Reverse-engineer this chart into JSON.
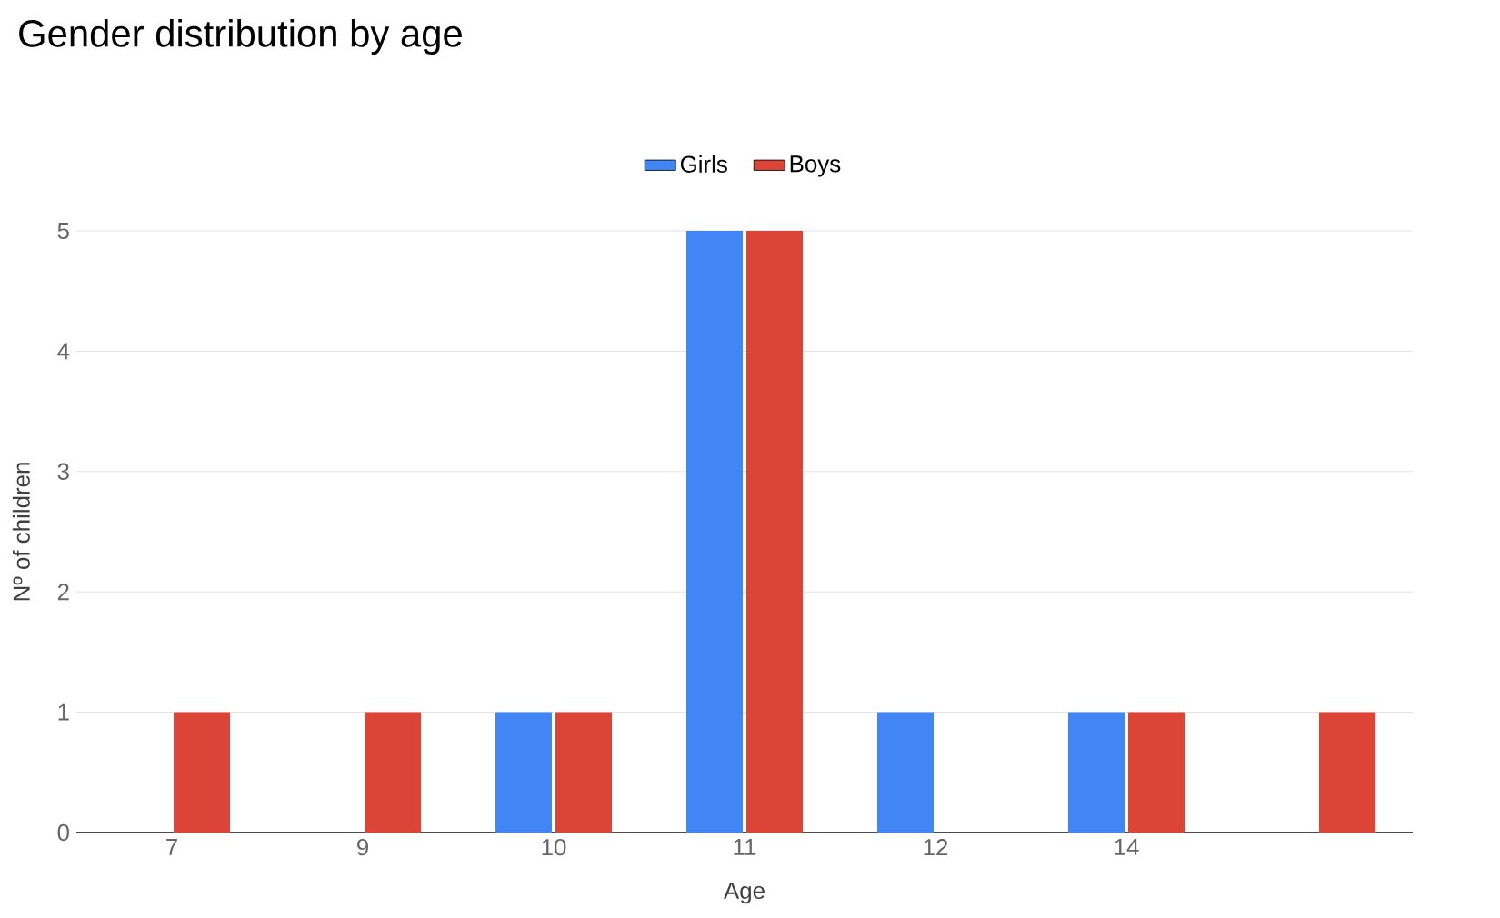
{
  "chart_data": {
    "type": "bar",
    "title": "Gender distribution by age",
    "xlabel": "Age",
    "ylabel": "Nº of children",
    "categories": [
      "7",
      "9",
      "10",
      "11",
      "12",
      "14",
      null
    ],
    "series": [
      {
        "name": "Girls",
        "color": "#4285f4",
        "values": [
          0,
          0,
          1,
          5,
          1,
          1,
          0
        ]
      },
      {
        "name": "Boys",
        "color": "#db4437",
        "values": [
          1,
          1,
          1,
          5,
          0,
          1,
          1
        ]
      }
    ],
    "ylim": [
      0,
      5
    ],
    "yticks": [
      0,
      1,
      2,
      3,
      4,
      5
    ],
    "grid": "y",
    "legend": "top"
  }
}
